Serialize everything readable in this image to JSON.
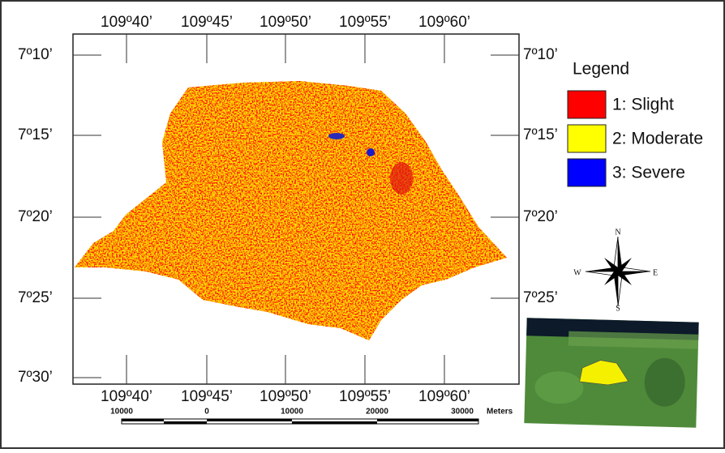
{
  "map": {
    "top_labels": [
      "109º40’",
      "109º45’",
      "109º50’",
      "109º55’",
      "109º60’"
    ],
    "bottom_labels": [
      "109º40’",
      "109º45’",
      "109º50’",
      "109º55’",
      "109º60’"
    ],
    "left_labels": [
      "7º10’",
      "7º15’",
      "7º20’",
      "7º25’",
      "7º30’"
    ],
    "right_labels": [
      "7º10’",
      "7º15’",
      "7º20’",
      "7º25’"
    ],
    "legend": {
      "title": "Legend",
      "items": [
        {
          "label": "1: Slight",
          "color": "#ff0000"
        },
        {
          "label": "2: Moderate",
          "color": "#ffff00"
        },
        {
          "label": "3: Severe",
          "color": "#0000ff"
        }
      ]
    },
    "compass": {
      "n": "N",
      "e": "E",
      "s": "S",
      "w": "W"
    },
    "scale_bar": {
      "labels": [
        "10000",
        "0",
        "10000",
        "20000",
        "30000"
      ],
      "unit": "Meters"
    }
  }
}
